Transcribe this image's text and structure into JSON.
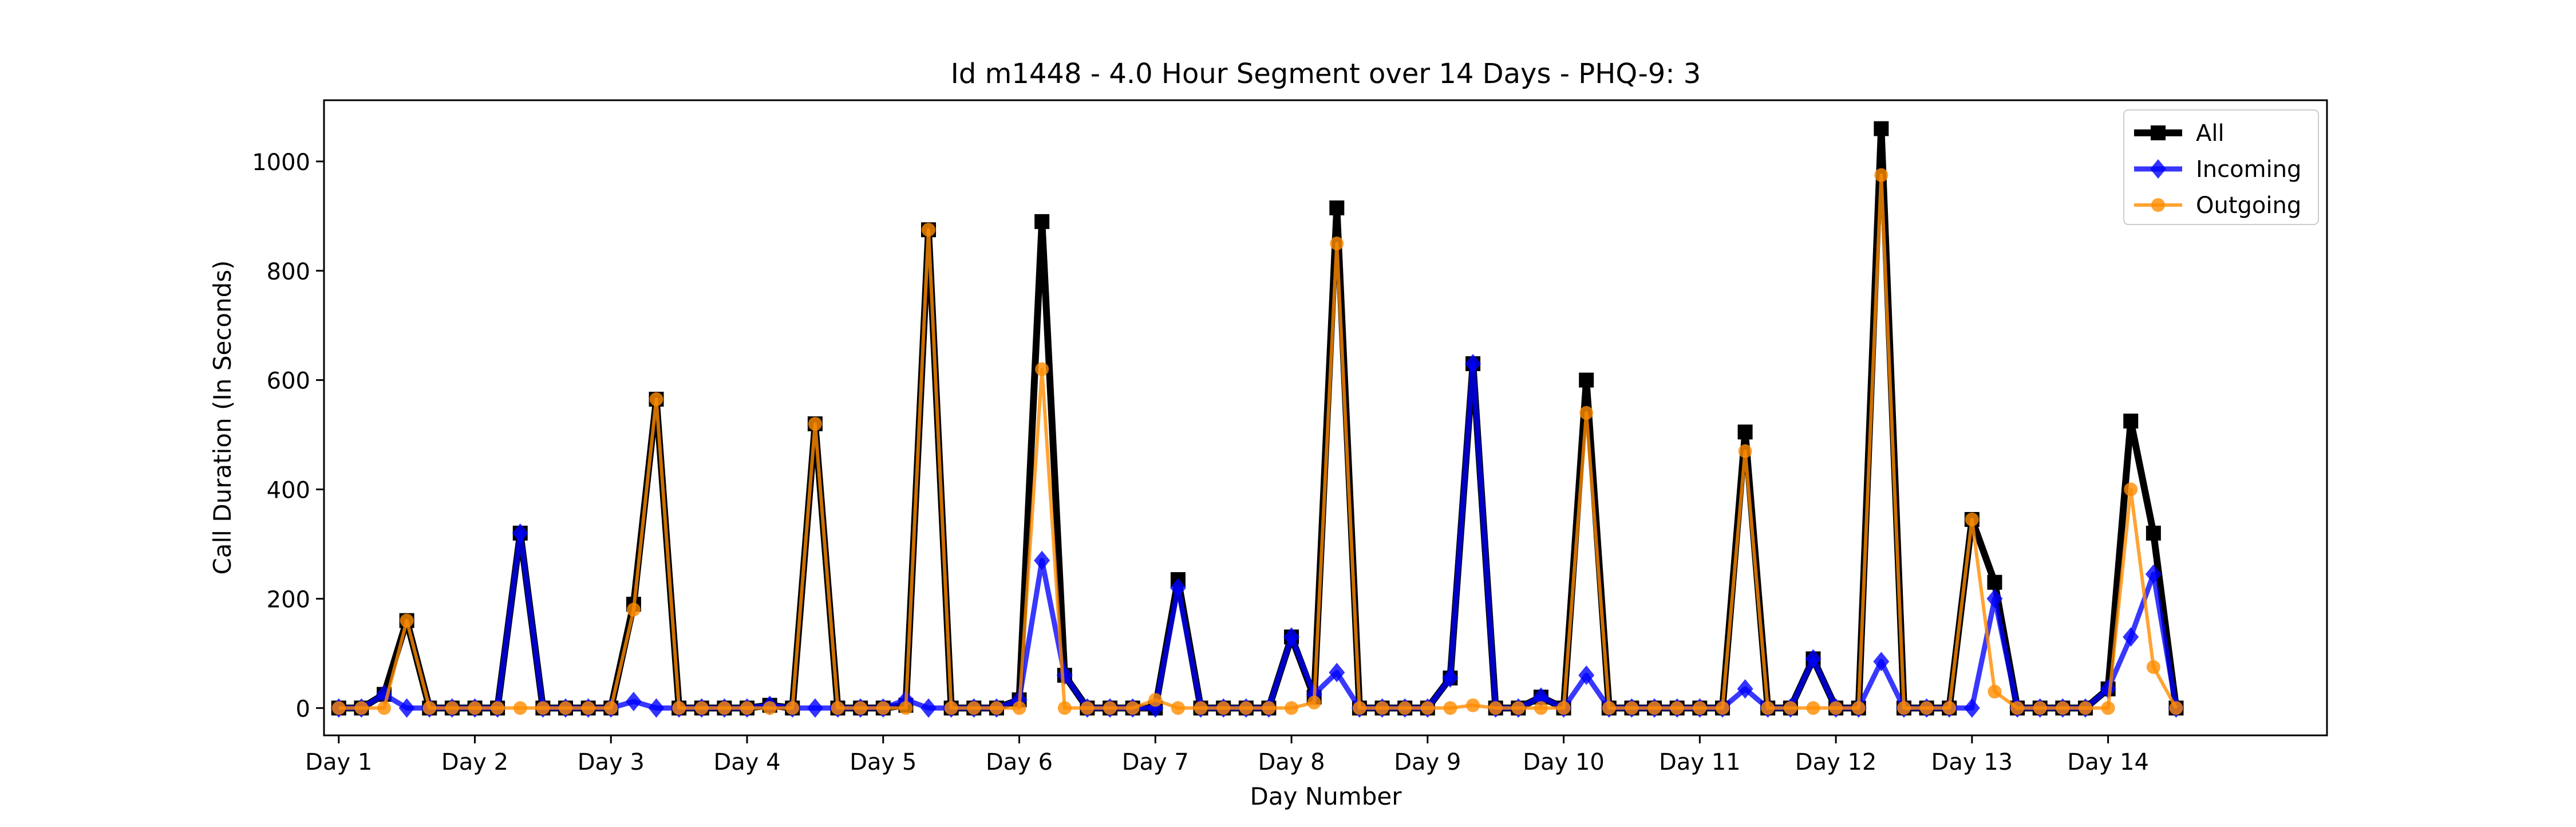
{
  "chart_data": {
    "type": "line",
    "title": "Id m1448 - 4.0 Hour Segment over 14 Days - PHQ-9: 3",
    "xlabel": "Day Number",
    "ylabel": "Call Duration (In Seconds)",
    "xlim": [
      -0.65,
      87.65
    ],
    "ylim": [
      -50,
      1112
    ],
    "yticks": [
      0,
      200,
      400,
      600,
      800,
      1000
    ],
    "xticks": [
      {
        "pos": 0,
        "label": "Day 1"
      },
      {
        "pos": 6,
        "label": "Day 2"
      },
      {
        "pos": 12,
        "label": "Day 3"
      },
      {
        "pos": 18,
        "label": "Day 4"
      },
      {
        "pos": 24,
        "label": "Day 5"
      },
      {
        "pos": 30,
        "label": "Day 6"
      },
      {
        "pos": 36,
        "label": "Day 7"
      },
      {
        "pos": 42,
        "label": "Day 8"
      },
      {
        "pos": 48,
        "label": "Day 9"
      },
      {
        "pos": 54,
        "label": "Day 10"
      },
      {
        "pos": 60,
        "label": "Day 11"
      },
      {
        "pos": 66,
        "label": "Day 12"
      },
      {
        "pos": 72,
        "label": "Day 13"
      },
      {
        "pos": 78,
        "label": "Day 14"
      }
    ],
    "grid": false,
    "legend": "top-right",
    "series": [
      {
        "name": "All",
        "color": "#000000",
        "marker": "square",
        "values": [
          0,
          0,
          25,
          160,
          0,
          0,
          0,
          0,
          320,
          0,
          0,
          0,
          0,
          190,
          565,
          0,
          0,
          0,
          0,
          5,
          0,
          520,
          0,
          0,
          0,
          5,
          875,
          0,
          0,
          0,
          15,
          890,
          60,
          0,
          0,
          0,
          0,
          235,
          0,
          0,
          0,
          0,
          130,
          20,
          915,
          0,
          0,
          0,
          0,
          55,
          630,
          0,
          0,
          20,
          0,
          600,
          0,
          0,
          0,
          0,
          0,
          0,
          505,
          0,
          0,
          90,
          0,
          0,
          1060,
          0,
          0,
          0,
          345,
          230,
          0,
          0,
          0,
          0,
          35,
          525,
          320,
          0
        ]
      },
      {
        "name": "Incoming",
        "color": "#0000ff",
        "marker": "diamond",
        "values": [
          0,
          0,
          25,
          0,
          0,
          0,
          0,
          0,
          320,
          0,
          0,
          0,
          0,
          12,
          0,
          0,
          0,
          0,
          0,
          5,
          0,
          0,
          0,
          0,
          0,
          15,
          0,
          0,
          0,
          0,
          15,
          270,
          60,
          0,
          0,
          0,
          0,
          220,
          0,
          0,
          0,
          0,
          130,
          25,
          65,
          0,
          0,
          0,
          0,
          55,
          630,
          0,
          0,
          20,
          0,
          60,
          0,
          0,
          0,
          0,
          0,
          0,
          35,
          0,
          0,
          90,
          0,
          0,
          85,
          0,
          0,
          0,
          0,
          200,
          0,
          0,
          0,
          0,
          35,
          130,
          245,
          0
        ]
      },
      {
        "name": "Outgoing",
        "color": "#ff8c00",
        "marker": "circle",
        "values": [
          0,
          0,
          0,
          160,
          0,
          0,
          0,
          0,
          0,
          0,
          0,
          0,
          0,
          180,
          565,
          0,
          0,
          0,
          0,
          0,
          0,
          520,
          0,
          0,
          0,
          0,
          875,
          0,
          0,
          0,
          0,
          620,
          0,
          0,
          0,
          0,
          15,
          0,
          0,
          0,
          0,
          0,
          0,
          10,
          850,
          0,
          0,
          0,
          0,
          0,
          5,
          0,
          0,
          0,
          0,
          540,
          0,
          0,
          0,
          0,
          0,
          0,
          470,
          0,
          0,
          0,
          0,
          0,
          975,
          0,
          0,
          0,
          345,
          30,
          0,
          0,
          0,
          0,
          0,
          400,
          75,
          0
        ]
      }
    ]
  }
}
